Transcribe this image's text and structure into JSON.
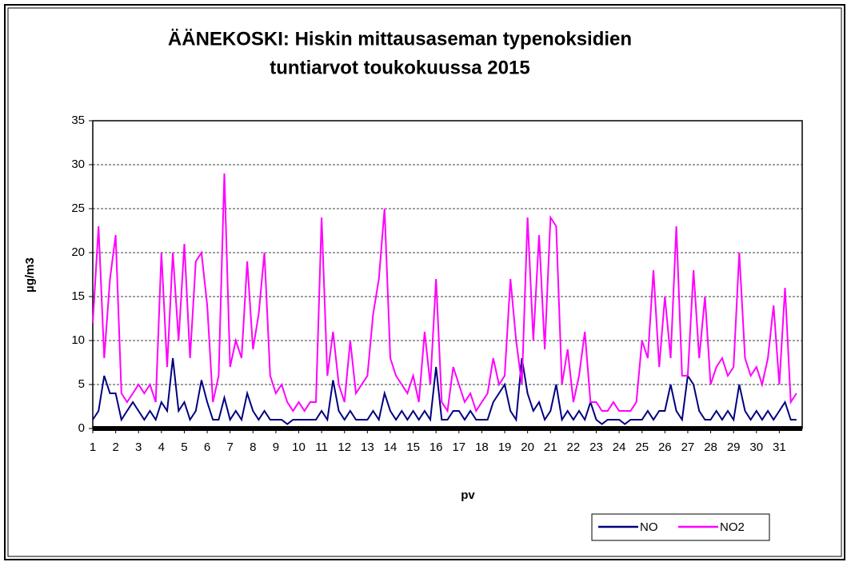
{
  "chart_data": {
    "type": "line",
    "title": "ÄÄNEKOSKI: Hiskin mittausaseman typenoksidien",
    "subtitle": "tuntiarvot toukokuussa 2015",
    "xlabel": "pv",
    "ylabel": "µg/m3",
    "xlim": [
      1,
      32
    ],
    "xticks": [
      1,
      2,
      3,
      4,
      5,
      6,
      7,
      8,
      9,
      10,
      11,
      12,
      13,
      14,
      15,
      16,
      17,
      18,
      19,
      20,
      21,
      22,
      23,
      24,
      25,
      26,
      27,
      28,
      29,
      30,
      31
    ],
    "ylim": [
      0,
      35
    ],
    "yticks": [
      0,
      5,
      10,
      15,
      20,
      25,
      30,
      35
    ],
    "grid": true,
    "legend": "bottom-right",
    "x": [
      1,
      1.25,
      1.5,
      1.75,
      2,
      2.25,
      2.5,
      2.75,
      3,
      3.25,
      3.5,
      3.75,
      4,
      4.25,
      4.5,
      4.75,
      5,
      5.25,
      5.5,
      5.75,
      6,
      6.25,
      6.5,
      6.75,
      7,
      7.25,
      7.5,
      7.75,
      8,
      8.25,
      8.5,
      8.75,
      9,
      9.25,
      9.5,
      9.75,
      10,
      10.25,
      10.5,
      10.75,
      11,
      11.25,
      11.5,
      11.75,
      12,
      12.25,
      12.5,
      12.75,
      13,
      13.25,
      13.5,
      13.75,
      14,
      14.25,
      14.5,
      14.75,
      15,
      15.25,
      15.5,
      15.75,
      16,
      16.25,
      16.5,
      16.75,
      17,
      17.25,
      17.5,
      17.75,
      18,
      18.25,
      18.5,
      18.75,
      19,
      19.25,
      19.5,
      19.75,
      20,
      20.25,
      20.5,
      20.75,
      21,
      21.25,
      21.5,
      21.75,
      22,
      22.25,
      22.5,
      22.75,
      23,
      23.25,
      23.5,
      23.75,
      24,
      24.25,
      24.5,
      24.75,
      25,
      25.25,
      25.5,
      25.75,
      26,
      26.25,
      26.5,
      26.75,
      27,
      27.25,
      27.5,
      27.75,
      28,
      28.25,
      28.5,
      28.75,
      29,
      29.25,
      29.5,
      29.75,
      30,
      30.25,
      30.5,
      30.75,
      31,
      31.25,
      31.5,
      31.75
    ],
    "series": [
      {
        "name": "NO",
        "color": "#000080",
        "values": [
          1,
          2,
          6,
          4,
          4,
          1,
          2,
          3,
          2,
          1,
          2,
          1,
          3,
          2,
          8,
          2,
          3,
          1,
          2,
          5.5,
          3,
          1,
          1,
          3.5,
          1,
          2,
          1,
          4,
          2,
          1,
          2,
          1,
          1,
          1,
          0.5,
          1,
          1,
          1,
          1,
          1,
          2,
          1,
          5.5,
          2,
          1,
          2,
          1,
          1,
          1,
          2,
          1,
          4,
          2,
          1,
          2,
          1,
          2,
          1,
          2,
          1,
          7,
          1,
          1,
          2,
          2,
          1,
          2,
          1,
          1,
          1,
          3,
          4,
          5,
          2,
          1,
          8,
          4,
          2,
          3,
          1,
          2,
          5,
          1,
          2,
          1,
          2,
          1,
          3,
          1,
          0.5,
          1,
          1,
          1,
          0.5,
          1,
          1,
          1,
          2,
          1,
          2,
          2,
          5,
          2,
          1,
          6,
          5,
          2,
          1,
          1,
          2,
          1,
          2,
          1,
          5,
          2,
          1,
          2,
          1,
          2,
          1,
          2,
          3,
          1,
          1
        ]
      },
      {
        "name": "NO2",
        "color": "#ff00ff",
        "values": [
          12,
          23,
          8,
          17,
          22,
          4,
          3,
          4,
          5,
          4,
          5,
          3,
          20,
          7,
          20,
          10,
          21,
          8,
          19,
          20,
          14,
          3,
          6,
          29,
          7,
          10,
          8,
          19,
          9,
          13,
          20,
          6,
          4,
          5,
          3,
          2,
          3,
          2,
          3,
          3,
          24,
          6,
          11,
          5,
          3,
          10,
          4,
          5,
          6,
          13,
          17,
          25,
          8,
          6,
          5,
          4,
          6,
          3,
          11,
          5,
          17,
          3,
          2,
          7,
          5,
          3,
          4,
          2,
          3,
          4,
          8,
          5,
          6,
          17,
          10,
          5,
          24,
          10,
          22,
          9,
          24,
          23,
          5,
          9,
          3,
          6,
          11,
          3,
          3,
          2,
          2,
          3,
          2,
          2,
          2,
          3,
          10,
          8,
          18,
          7,
          15,
          8,
          23,
          6,
          6,
          18,
          8,
          15,
          5,
          7,
          8,
          6,
          7,
          20,
          8,
          6,
          7,
          5,
          8,
          14,
          5,
          16,
          3,
          4
        ]
      }
    ]
  }
}
